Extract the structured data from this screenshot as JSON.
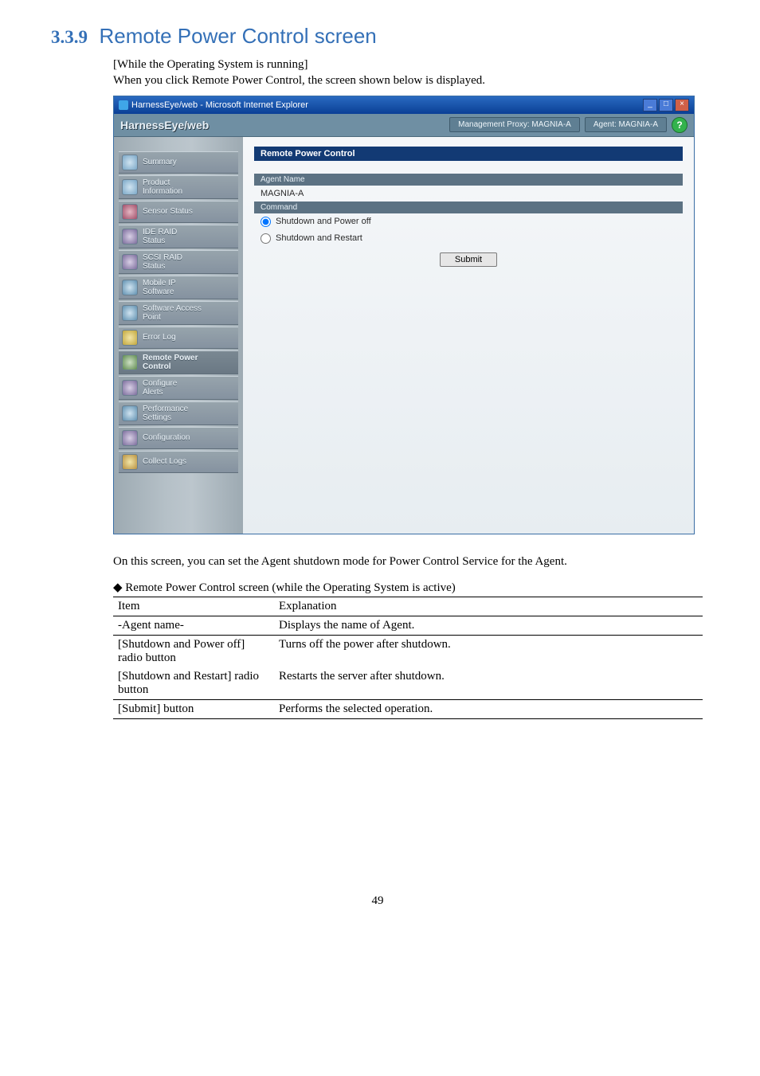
{
  "section": {
    "number": "3.3.9",
    "title": "Remote Power Control screen"
  },
  "intro": {
    "line1": "[While the Operating System is running]",
    "line2": "When you click Remote Power Control, the screen shown below is displayed."
  },
  "window": {
    "title": "HarnessEye/web - Microsoft Internet Explorer",
    "btn_min": "_",
    "btn_max": "□",
    "btn_close": "×"
  },
  "appbar": {
    "logo": "HarnessEye/web",
    "proxy": "Management Proxy: MAGNIA-A",
    "agent": "Agent: MAGNIA-A",
    "help": "?"
  },
  "nav": {
    "items": [
      {
        "label": "Summary",
        "icon": "info"
      },
      {
        "label": "Product Information",
        "icon": "info",
        "twoLine": true
      },
      {
        "label": "Sensor Status",
        "icon": "sensor"
      },
      {
        "label": "IDE RAID Status",
        "icon": "config",
        "twoLine": true
      },
      {
        "label": "SCSI RAID Status",
        "icon": "config",
        "twoLine": true
      },
      {
        "label": "Mobile IP Software",
        "icon": "perf",
        "twoLine": true
      },
      {
        "label": "Software Access Point",
        "icon": "perf",
        "twoLine": true
      },
      {
        "label": "Error Log",
        "icon": "error"
      },
      {
        "label": "Remote Power Control",
        "icon": "power",
        "twoLine": true,
        "active": true
      },
      {
        "label": "Configure Alerts",
        "icon": "config",
        "twoLine": true
      },
      {
        "label": "Performance Settings",
        "icon": "perf",
        "twoLine": true
      },
      {
        "label": "Configuration",
        "icon": "config"
      },
      {
        "label": "Collect Logs",
        "icon": "logs"
      }
    ]
  },
  "main": {
    "panel_title": "Remote Power Control",
    "header_agent": "Agent Name",
    "agent_value": "MAGNIA-A",
    "header_command": "Command",
    "opt_off": "Shutdown and Power off",
    "opt_restart": "Shutdown and Restart",
    "submit": "Submit"
  },
  "caption": "On this screen, you can set the Agent shutdown mode for Power Control Service for the Agent.",
  "table_title": "◆ Remote Power Control screen (while the Operating System is active)",
  "table": {
    "h_item": "Item",
    "h_exp": "Explanation",
    "rows": [
      {
        "item": "-Agent name-",
        "exp": "Displays the name of Agent."
      },
      {
        "item": "[Shutdown and Power off] radio button",
        "exp": "Turns off the power after shutdown."
      },
      {
        "item": "[Shutdown and Restart] radio button",
        "exp": "Restarts the server after shutdown."
      },
      {
        "item": "[Submit] button",
        "exp": "Performs the selected operation."
      }
    ]
  },
  "pagenum": "49"
}
